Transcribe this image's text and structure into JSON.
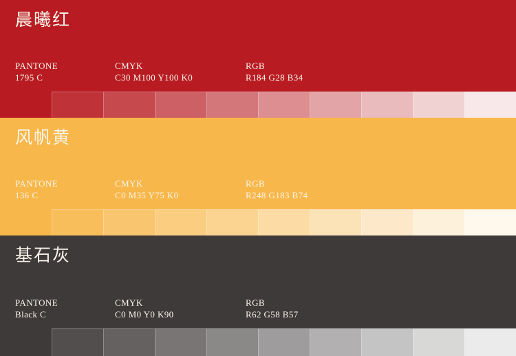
{
  "palette": {
    "labels": {
      "pantone": "PANTONE",
      "cmyk": "CMYK",
      "rgb": "RGB"
    },
    "sections": [
      {
        "name": "晨曦红",
        "pantone_value": "1795 C",
        "cmyk_value": "C30 M100 Y100 K0",
        "rgb_value": "R184 G28 B34",
        "color_hex": "#B81C22",
        "tints": [
          "#B81C22",
          "#BF3338",
          "#C6494E",
          "#CD6064",
          "#D4777A",
          "#DC8E91",
          "#E3A4A7",
          "#EABBBD",
          "#F1D2D3",
          "#F8E8E9"
        ]
      },
      {
        "name": "风帆黄",
        "pantone_value": "136 C",
        "cmyk_value": "C0 M35 Y75 K0",
        "rgb_value": "R248 G183 B74",
        "color_hex": "#F8B74A",
        "tints": [
          "#F8B74A",
          "#F9BE5C",
          "#F9C56E",
          "#FACD80",
          "#FBD492",
          "#FCDBA5",
          "#FCE2B7",
          "#FDE9C9",
          "#FEF1DB",
          "#FEF8ED"
        ]
      },
      {
        "name": "基石灰",
        "pantone_value": "Black C",
        "cmyk_value": "C0 M0 Y0 K90",
        "rgb_value": "R62 G58 B57",
        "color_hex": "#3E3A39",
        "tints": [
          "#3E3A39",
          "#514E4D",
          "#656161",
          "#787574",
          "#8B8988",
          "#9E9C9C",
          "#B2B0B0",
          "#C5C4C4",
          "#D8D8D7",
          "#ECEBEB"
        ]
      }
    ]
  }
}
